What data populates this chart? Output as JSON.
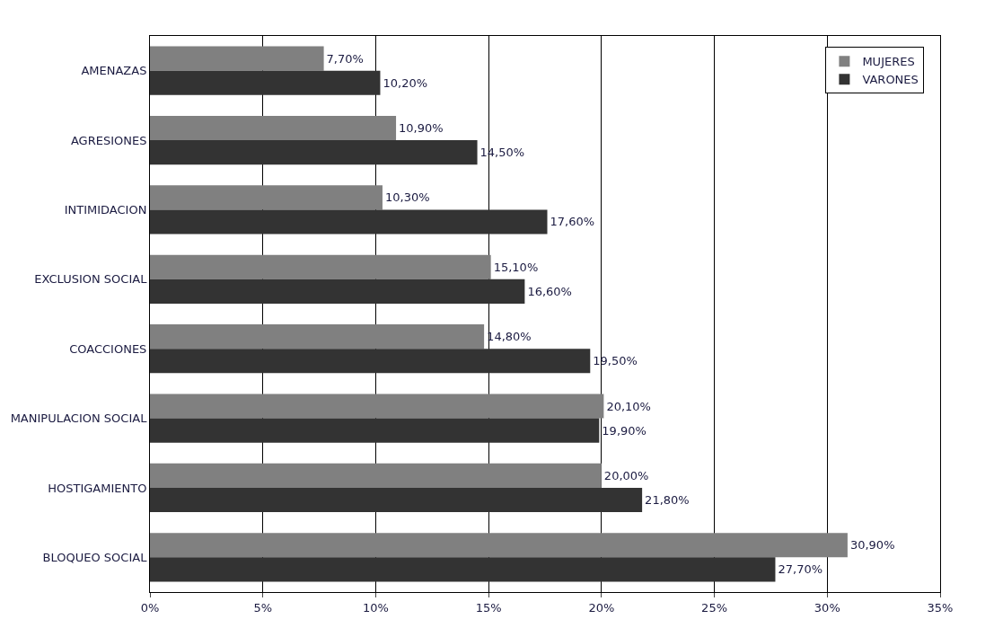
{
  "chart_data": {
    "type": "bar",
    "orientation": "horizontal",
    "categories": [
      "AMENAZAS",
      "AGRESIONES",
      "INTIMIDACION",
      "EXCLUSION SOCIAL",
      "COACCIONES",
      "MANIPULACION SOCIAL",
      "HOSTIGAMIENTO",
      "BLOQUEO SOCIAL"
    ],
    "series": [
      {
        "name": "MUJERES",
        "color": "#808080",
        "values": [
          7.7,
          10.9,
          10.3,
          15.1,
          14.8,
          20.1,
          20.0,
          30.9
        ],
        "value_labels": [
          "7,70%",
          "10,90%",
          "10,30%",
          "15,10%",
          "14,80%",
          "20,10%",
          "20,00%",
          "30,90%"
        ]
      },
      {
        "name": "VARONES",
        "color": "#333333",
        "values": [
          10.2,
          14.5,
          17.6,
          16.6,
          19.5,
          19.9,
          21.8,
          27.7
        ],
        "value_labels": [
          "10,20%",
          "14,50%",
          "17,60%",
          "16,60%",
          "19,50%",
          "19,90%",
          "21,80%",
          "27,70%"
        ]
      }
    ],
    "xlim": [
      0,
      35
    ],
    "xticks": [
      {
        "value": 0,
        "label": "0%"
      },
      {
        "value": 5,
        "label": "5%"
      },
      {
        "value": 10,
        "label": "10%"
      },
      {
        "value": 15,
        "label": "15%"
      },
      {
        "value": 20,
        "label": "20%"
      },
      {
        "value": 25,
        "label": "25%"
      },
      {
        "value": 30,
        "label": "30%"
      },
      {
        "value": 35,
        "label": "35%"
      }
    ],
    "grid": "x",
    "legend": "top right"
  }
}
